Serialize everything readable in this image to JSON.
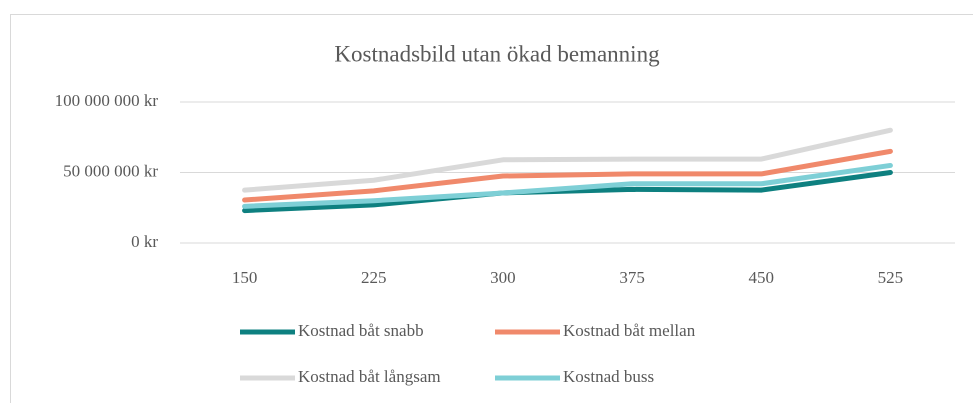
{
  "chart_data": {
    "type": "line",
    "title": "Kostnadsbild utan ökad bemanning",
    "categories": [
      "150",
      "225",
      "300",
      "375",
      "450",
      "525"
    ],
    "series": [
      {
        "name": "Kostnad båt snabb",
        "color": "#0e8080",
        "values": [
          23000000,
          27000000,
          35500000,
          38000000,
          37500000,
          50000000
        ]
      },
      {
        "name": "Kostnad båt mellan",
        "color": "#f0896b",
        "values": [
          30500000,
          37000000,
          47500000,
          49000000,
          49000000,
          65000000
        ]
      },
      {
        "name": "Kostnad båt långsam",
        "color": "#d9d9d9",
        "values": [
          37500000,
          44500000,
          59000000,
          59500000,
          59500000,
          80000000
        ]
      },
      {
        "name": "Kostnad buss",
        "color": "#7ecfd6",
        "values": [
          26000000,
          30000000,
          35500000,
          42000000,
          42000000,
          55000000
        ]
      }
    ],
    "ylim": [
      0,
      100000000
    ],
    "yticks": [
      {
        "value": 0,
        "label": "0 kr"
      },
      {
        "value": 50000000,
        "label": "50 000 000 kr"
      },
      {
        "value": 100000000,
        "label": "100 000 000 kr"
      }
    ],
    "grid": true,
    "legend": "bottom"
  }
}
